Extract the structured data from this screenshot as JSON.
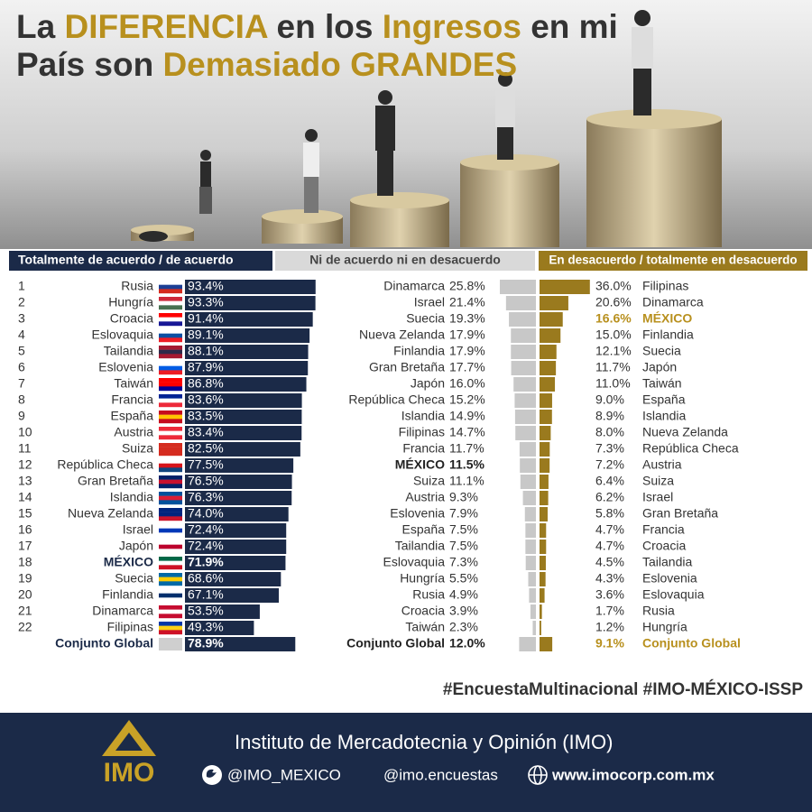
{
  "header": {
    "title": [
      [
        {
          "text": "La ",
          "color": "#333333"
        },
        {
          "text": "DIFERENCIA",
          "color": "#b8901e"
        },
        {
          "text": " en los ",
          "color": "#333333"
        },
        {
          "text": "Ingresos",
          "color": "#b8901e"
        },
        {
          "text": " en mi",
          "color": "#333333"
        }
      ],
      [
        {
          "text": "País son ",
          "color": "#333333"
        },
        {
          "text": "Demasiado GRANDES",
          "color": "#b8901e"
        }
      ]
    ]
  },
  "chart_data": [
    {
      "type": "bar",
      "orientation": "horizontal",
      "title": "Totalmente de acuerdo / de acuerdo",
      "color": "#1b2a48",
      "highlight_category": "MÉXICO",
      "highlight_color": "#1b2a48",
      "ranks": [
        1,
        2,
        3,
        4,
        5,
        6,
        7,
        8,
        9,
        10,
        11,
        12,
        13,
        14,
        15,
        16,
        17,
        18,
        19,
        20,
        21,
        22
      ],
      "categories": [
        "Rusia",
        "Hungría",
        "Croacia",
        "Eslovaquia",
        "Tailandia",
        "Eslovenia",
        "Taiwán",
        "Francia",
        "España",
        "Austria",
        "Suiza",
        "República Checa",
        "Gran Bretaña",
        "Islandia",
        "Nueva Zelanda",
        "Israel",
        "Japón",
        "MÉXICO",
        "Suecia",
        "Finlandia",
        "Dinamarca",
        "Filipinas"
      ],
      "values": [
        93.4,
        93.3,
        91.4,
        89.1,
        88.1,
        87.9,
        86.8,
        83.6,
        83.5,
        83.4,
        82.5,
        77.5,
        76.5,
        76.3,
        74.0,
        72.4,
        72.4,
        71.9,
        68.6,
        67.1,
        53.5,
        49.3
      ],
      "value_labels": [
        "93.4%",
        "93.3%",
        "91.4%",
        "89.1%",
        "88.1%",
        "87.9%",
        "86.8%",
        "83.6%",
        "83.5%",
        "83.4%",
        "82.5%",
        "77.5%",
        "76.5%",
        "76.3%",
        "74.0%",
        "72.4%",
        "72.4%",
        "71.9%",
        "68.6%",
        "67.1%",
        "53.5%",
        "49.3%"
      ],
      "total": {
        "name": "Conjunto Global",
        "value": 78.9,
        "value_label": "78.9%"
      }
    },
    {
      "type": "bar",
      "orientation": "horizontal",
      "title": "Ni de acuerdo ni en desacuerdo",
      "color": "#c8c8c8",
      "highlight_category": "MÉXICO",
      "highlight_color": "#222222",
      "categories": [
        "Dinamarca",
        "Israel",
        "Suecia",
        "Nueva Zelanda",
        "Finlandia",
        "Gran Bretaña",
        "Japón",
        "República Checa",
        "Islandia",
        "Filipinas",
        "Francia",
        "MÉXICO",
        "Suiza",
        "Austria",
        "Eslovenia",
        "España",
        "Tailandia",
        "Eslovaquia",
        "Hungría",
        "Rusia",
        "Croacia",
        "Taiwán"
      ],
      "values": [
        25.8,
        21.4,
        19.3,
        17.9,
        17.9,
        17.7,
        16.0,
        15.2,
        14.9,
        14.7,
        11.7,
        11.5,
        11.1,
        9.3,
        7.9,
        7.5,
        7.5,
        7.3,
        5.5,
        4.9,
        3.9,
        2.3
      ],
      "value_labels": [
        "25.8%",
        "21.4%",
        "19.3%",
        "17.9%",
        "17.9%",
        "17.7%",
        "16.0%",
        "15.2%",
        "14.9%",
        "14.7%",
        "11.7%",
        "11.5%",
        "11.1%",
        "9.3%",
        "7.9%",
        "7.5%",
        "7.5%",
        "7.3%",
        "5.5%",
        "4.9%",
        "3.9%",
        "2.3%"
      ],
      "total": {
        "name": "Conjunto Global",
        "value": 12.0,
        "value_label": "12.0%"
      }
    },
    {
      "type": "bar",
      "orientation": "horizontal",
      "title": "En desacuerdo / totalmente en desacuerdo",
      "color": "#9a7a1e",
      "highlight_category": "MÉXICO",
      "highlight_color": "#b8901e",
      "categories": [
        "Filipinas",
        "Dinamarca",
        "MÉXICO",
        "Finlandia",
        "Suecia",
        "Japón",
        "Taiwán",
        "España",
        "Islandia",
        "Nueva Zelanda",
        "República Checa",
        "Austria",
        "Suiza",
        "Israel",
        "Gran Bretaña",
        "Francia",
        "Croacia",
        "Tailandia",
        "Eslovenia",
        "Eslovaquia",
        "Rusia",
        "Hungría"
      ],
      "values": [
        36.0,
        20.6,
        16.6,
        15.0,
        12.1,
        11.7,
        11.0,
        9.0,
        8.9,
        8.0,
        7.3,
        7.2,
        6.4,
        6.2,
        5.8,
        4.7,
        4.7,
        4.5,
        4.3,
        3.6,
        1.7,
        1.2
      ],
      "value_labels": [
        "36.0%",
        "20.6%",
        "16.6%",
        "15.0%",
        "12.1%",
        "11.7%",
        "11.0%",
        "9.0%",
        "8.9%",
        "8.0%",
        "7.3%",
        "7.2%",
        "6.4%",
        "6.2%",
        "5.8%",
        "4.7%",
        "4.7%",
        "4.5%",
        "4.3%",
        "3.6%",
        "1.7%",
        "1.2%"
      ],
      "total": {
        "name": "Conjunto Global",
        "value": 9.1,
        "value_label": "9.1%"
      }
    }
  ],
  "hashtags": "#EncuestaMultinacional #IMO-MÉXICO-ISSP",
  "footer": {
    "logo": "IMO",
    "institute": "Instituto de Mercadotecnia y Opinión (IMO)",
    "twitter": "@IMO_MEXICO",
    "instagram": "@imo.encuestas",
    "website": "www.imocorp.com.mx"
  }
}
